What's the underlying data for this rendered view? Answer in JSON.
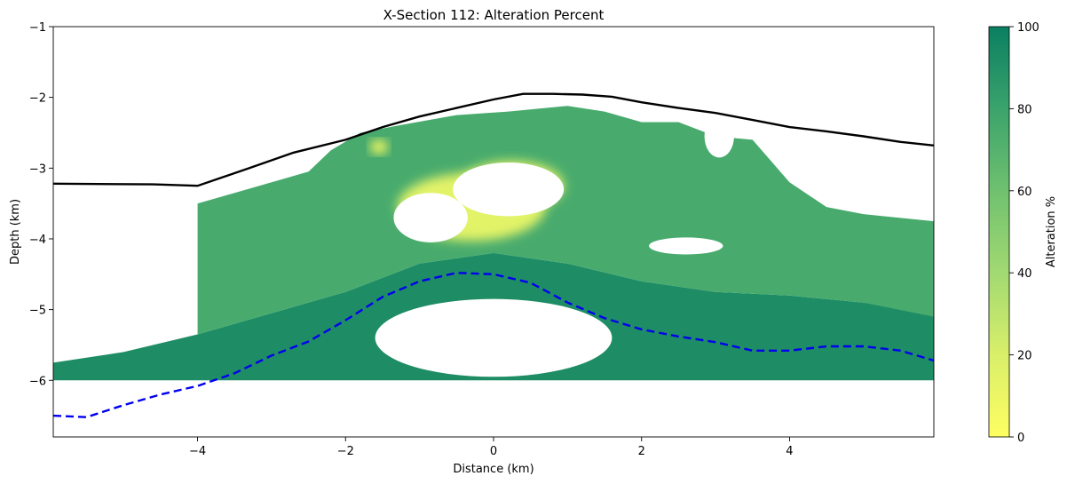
{
  "chart_data": {
    "type": "heatmap",
    "title": "X-Section 112: Alteration Percent",
    "xlabel": "Distance (km)",
    "ylabel": "Depth (km)",
    "xlim": [
      -5.95,
      5.95
    ],
    "ylim": [
      -6.8,
      -1.0
    ],
    "xticks": [
      -4,
      -2,
      0,
      2,
      4
    ],
    "xtick_labels": [
      "−4",
      "−2",
      "0",
      "2",
      "4"
    ],
    "yticks": [
      -1,
      -2,
      -3,
      -4,
      -5,
      -6
    ],
    "ytick_labels": [
      "−1",
      "−2",
      "−3",
      "−4",
      "−5",
      "−6"
    ],
    "colorbar": {
      "label": "Alteration %",
      "range": [
        0,
        100
      ],
      "ticks": [
        0,
        20,
        40,
        60,
        80,
        100
      ],
      "colors": [
        "#fefe62",
        "#d9ef6a",
        "#a2d972",
        "#6fc16f",
        "#3ba36c",
        "#0a7f61"
      ]
    },
    "grid": false,
    "surface_line": {
      "color": "#000000",
      "style": "solid",
      "x": [
        -5.95,
        -4.6,
        -4.0,
        -3.3,
        -2.7,
        -2.0,
        -1.5,
        -1.0,
        -0.5,
        0.0,
        0.4,
        0.8,
        1.2,
        1.6,
        2.0,
        2.5,
        3.0,
        3.5,
        4.0,
        4.5,
        5.0,
        5.5,
        5.95
      ],
      "y": [
        -3.22,
        -3.23,
        -3.25,
        -3.0,
        -2.78,
        -2.6,
        -2.42,
        -2.27,
        -2.15,
        -2.03,
        -1.95,
        -1.95,
        -1.96,
        -1.99,
        -2.07,
        -2.15,
        -2.22,
        -2.32,
        -2.42,
        -2.48,
        -2.55,
        -2.63,
        -2.68
      ]
    },
    "boundary_line": {
      "color": "#0000ee",
      "style": "dashed",
      "x": [
        -5.95,
        -5.5,
        -5.0,
        -4.5,
        -4.0,
        -3.5,
        -3.0,
        -2.5,
        -2.0,
        -1.5,
        -1.0,
        -0.5,
        0.0,
        0.5,
        1.0,
        1.5,
        2.0,
        2.5,
        3.0,
        3.5,
        4.0,
        4.5,
        5.0,
        5.5,
        5.95
      ],
      "y": [
        -6.5,
        -6.52,
        -6.35,
        -6.2,
        -6.08,
        -5.9,
        -5.65,
        -5.45,
        -5.15,
        -4.82,
        -4.6,
        -4.48,
        -4.5,
        -4.62,
        -4.9,
        -5.12,
        -5.28,
        -5.38,
        -5.46,
        -5.58,
        -5.58,
        -5.52,
        -5.52,
        -5.58,
        -5.72
      ]
    },
    "alteration_regions": [
      {
        "name": "lower-green-band",
        "value": 92,
        "x": [
          -5.95,
          -5.0,
          -4.0,
          -3.0,
          -2.0,
          -1.0,
          0.0,
          1.0,
          2.0,
          3.0,
          4.0,
          5.0,
          5.95,
          5.95,
          5.0,
          4.0,
          3.0,
          2.0,
          1.0,
          0.0,
          -1.0,
          -2.0,
          -3.0,
          -4.0,
          -5.0,
          -5.95
        ],
        "y": [
          -5.75,
          -5.6,
          -5.35,
          -5.05,
          -4.75,
          -4.35,
          -4.2,
          -4.35,
          -4.6,
          -4.75,
          -4.8,
          -4.9,
          -5.0,
          -6.0,
          -6.0,
          -6.0,
          -6.0,
          -6.0,
          -6.0,
          -6.0,
          -6.0,
          -6.0,
          -6.0,
          -6.0,
          -6.0,
          -6.0
        ]
      },
      {
        "name": "upper-body",
        "value": 75,
        "x": [
          -4.0,
          -3.5,
          -3.0,
          -2.5,
          -2.2,
          -1.8,
          -1.3,
          -0.5,
          0.2,
          1.0,
          1.5,
          2.0,
          2.5,
          3.0,
          3.5,
          4.0,
          4.5,
          5.0,
          5.95,
          5.95,
          5.0,
          4.0,
          3.0,
          2.0,
          1.0,
          0.0,
          -1.0,
          -2.0,
          -3.0,
          -4.0
        ],
        "y": [
          -3.5,
          -3.35,
          -3.2,
          -3.05,
          -2.75,
          -2.5,
          -2.4,
          -2.25,
          -2.2,
          -2.12,
          -2.2,
          -2.35,
          -2.35,
          -2.55,
          -2.6,
          -3.2,
          -3.55,
          -3.65,
          -3.75,
          -5.1,
          -4.9,
          -4.8,
          -4.75,
          -4.6,
          -4.35,
          -4.2,
          -4.35,
          -4.75,
          -5.05,
          -5.35
        ]
      }
    ],
    "low_alteration_patches": [
      {
        "x": -0.3,
        "y": -3.55,
        "rx": 1.0,
        "ry": 0.48,
        "value": 15
      },
      {
        "x": 0.25,
        "y": -3.25,
        "rx": 0.7,
        "ry": 0.35,
        "value": 15
      },
      {
        "x": -1.55,
        "y": -2.7,
        "rx": 0.12,
        "ry": 0.1,
        "value": 5
      }
    ],
    "voids": [
      {
        "x": 0.2,
        "y": -3.3,
        "rx": 0.75,
        "ry": 0.38
      },
      {
        "x": -0.85,
        "y": -3.7,
        "rx": 0.5,
        "ry": 0.35
      },
      {
        "x": 2.6,
        "y": -4.1,
        "rx": 0.5,
        "ry": 0.12
      },
      {
        "x": 3.05,
        "y": -2.55,
        "rx": 0.2,
        "ry": 0.3
      },
      {
        "x": 0.0,
        "y": -5.4,
        "rx": 1.6,
        "ry": 0.55
      }
    ]
  }
}
